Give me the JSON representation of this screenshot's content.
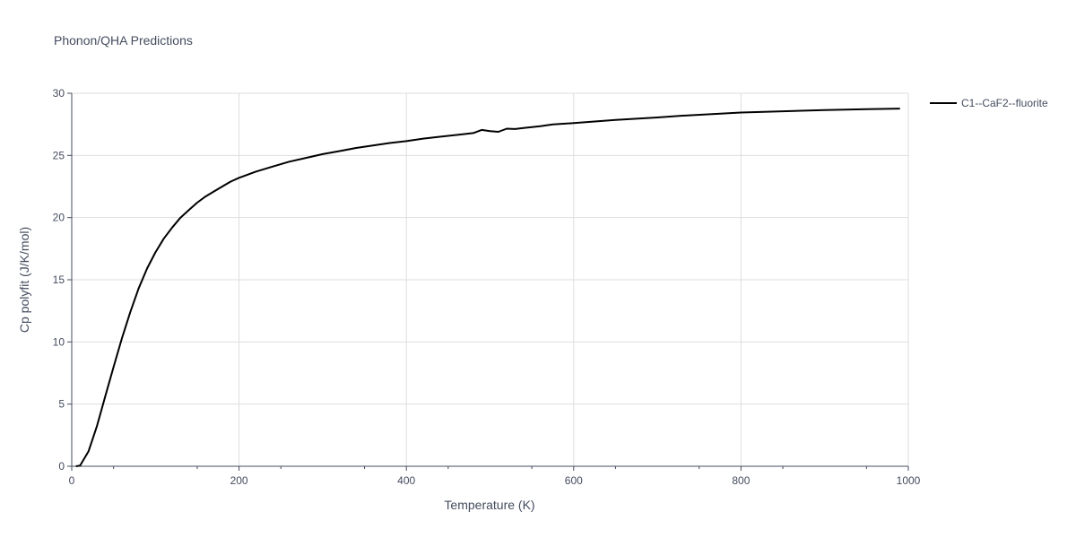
{
  "chart_data": {
    "type": "line",
    "title": "Phonon/QHA Predictions",
    "xlabel": "Temperature (K)",
    "ylabel": "Cp polyfit (J/K/mol)",
    "xlim": [
      0,
      1000
    ],
    "ylim": [
      0,
      30
    ],
    "xticks": [
      "0",
      "200",
      "400",
      "600",
      "800",
      "1000"
    ],
    "yticks": [
      "0",
      "5",
      "10",
      "15",
      "20",
      "25",
      "30"
    ],
    "grid": true,
    "legend_position": "top-right",
    "series": [
      {
        "name": "C1--CaF2--fluorite",
        "color": "#000000",
        "x": [
          5,
          10,
          20,
          30,
          40,
          50,
          60,
          70,
          80,
          90,
          100,
          110,
          120,
          130,
          140,
          150,
          160,
          170,
          180,
          190,
          200,
          220,
          240,
          260,
          280,
          300,
          320,
          340,
          360,
          380,
          400,
          420,
          440,
          460,
          480,
          490,
          500,
          510,
          520,
          530,
          540,
          560,
          575,
          600,
          650,
          700,
          730,
          800,
          850,
          900,
          950,
          990
        ],
        "y": [
          0.0,
          0.05,
          1.2,
          3.2,
          5.6,
          8.0,
          10.3,
          12.4,
          14.3,
          15.9,
          17.2,
          18.3,
          19.2,
          20.0,
          20.6,
          21.2,
          21.7,
          22.1,
          22.5,
          22.9,
          23.2,
          23.7,
          24.1,
          24.5,
          24.8,
          25.1,
          25.35,
          25.6,
          25.8,
          26.0,
          26.15,
          26.35,
          26.5,
          26.65,
          26.8,
          27.05,
          26.95,
          26.9,
          27.15,
          27.12,
          27.2,
          27.35,
          27.5,
          27.6,
          27.85,
          28.05,
          28.2,
          28.45,
          28.55,
          28.65,
          28.72,
          28.77
        ]
      }
    ]
  }
}
